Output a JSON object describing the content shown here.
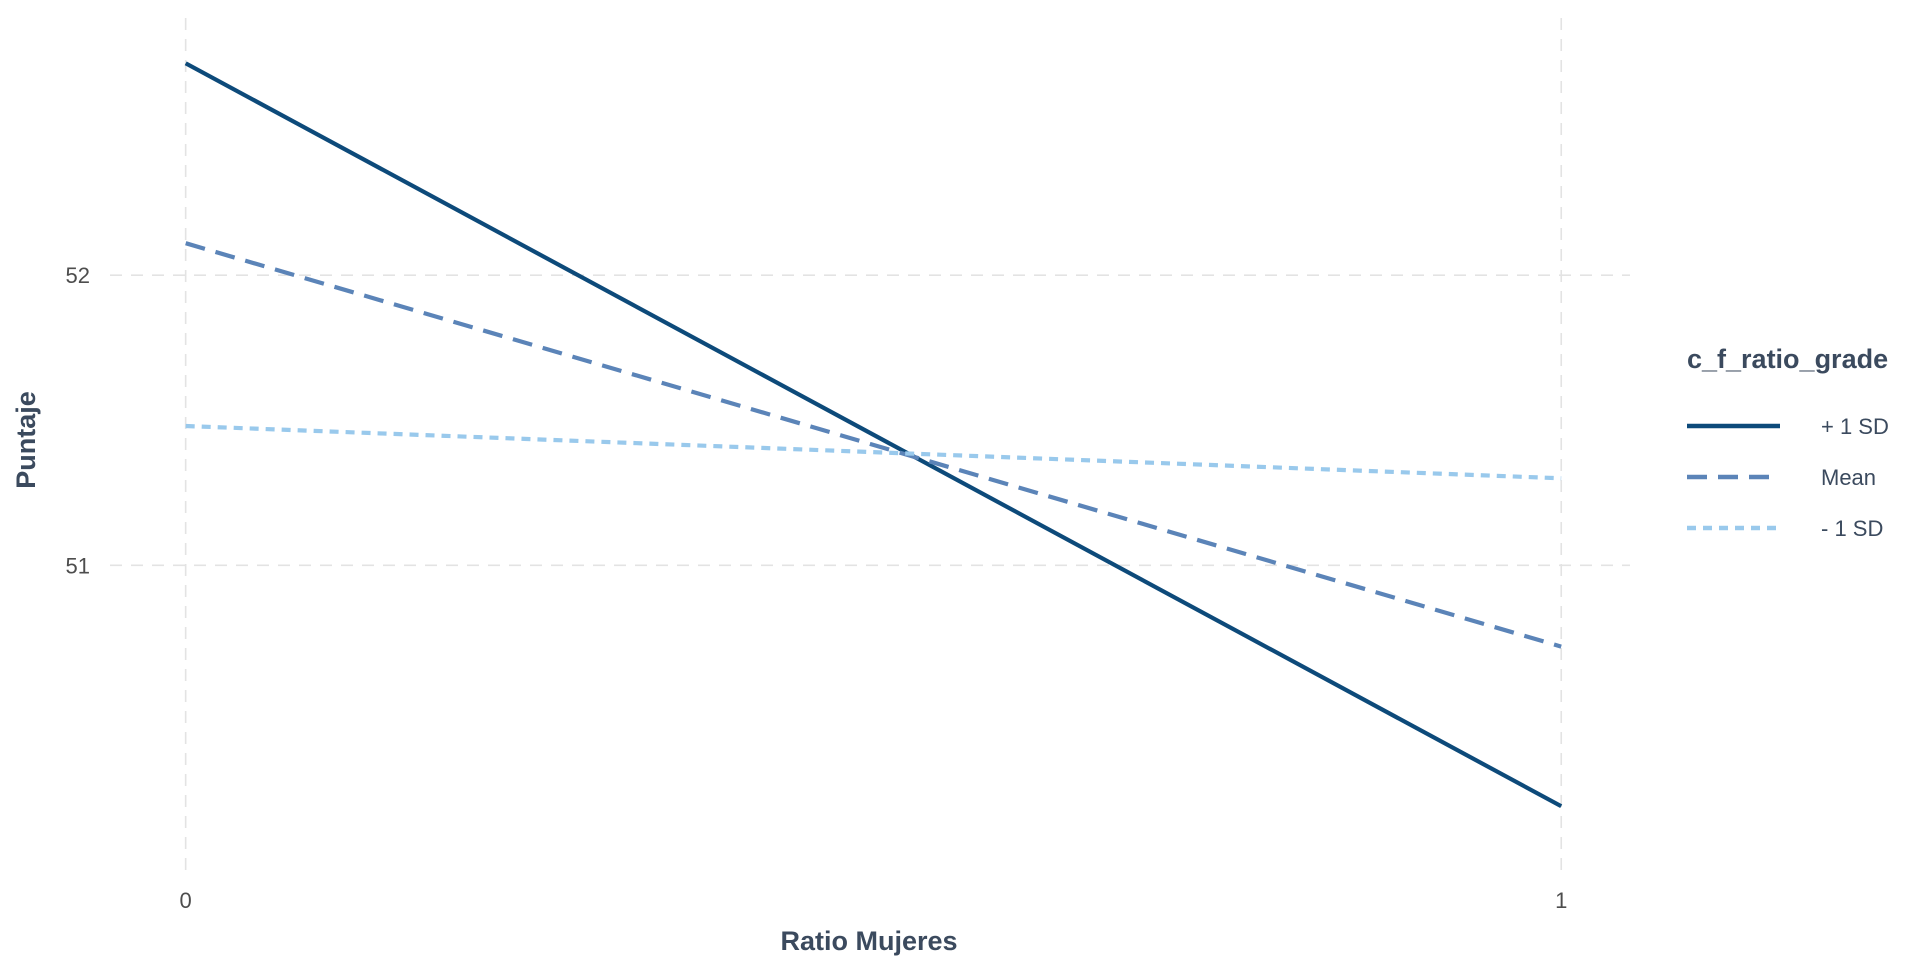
{
  "chart_data": {
    "type": "line",
    "title": "",
    "xlabel": "Ratio Mujeres",
    "ylabel": "Puntaje",
    "x_ticks": [
      "0",
      "1"
    ],
    "y_ticks": [
      "51",
      "52"
    ],
    "xlim": [
      -0.055,
      1.05
    ],
    "ylim": [
      49.95,
      52.9
    ],
    "grid": "dashed",
    "legend": {
      "title": "c_f_ratio_grade",
      "placement": "right"
    },
    "x": [
      0,
      1
    ],
    "series": [
      {
        "name": "+ 1 SD",
        "values": [
          52.73,
          50.17
        ],
        "color": "#0d4a7a",
        "line_style": "solid"
      },
      {
        "name": "Mean",
        "values": [
          52.11,
          50.72
        ],
        "color": "#5b84b8",
        "line_style": "dashed"
      },
      {
        "name": "- 1 SD",
        "values": [
          51.48,
          51.3
        ],
        "color": "#99c9ec",
        "line_style": "dotted"
      }
    ]
  }
}
